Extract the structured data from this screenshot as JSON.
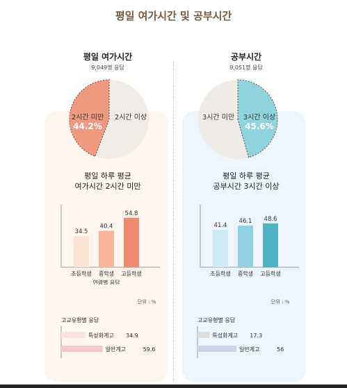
{
  "title": "평일 여가시간 및 공부시간",
  "leisure": {
    "title": "평일 여가시간",
    "respondents": "9,049명 응답",
    "pie": {
      "labels": [
        "2시간 미만",
        "2시간 이상"
      ],
      "highlight_pct": "44.2%",
      "values": [
        44.2,
        55.8
      ]
    },
    "headline_line1": "평일 하루 평균",
    "headline_line2": "여가시간 2시간 미만",
    "bar_label": "연령별 응답",
    "unit": "단위 : %",
    "school_type_title": "고교유형별 응답"
  },
  "study": {
    "title": "공부시간",
    "respondents": "9,051명 응답",
    "pie": {
      "labels": [
        "3시간 미만",
        "3시간 이상"
      ],
      "highlight_pct": "45.6%",
      "values": [
        54.4,
        45.6
      ]
    },
    "headline_line1": "평일 하루 평균",
    "headline_line2": "공부시간 3시간 이상",
    "unit": "단위 : %",
    "school_type_title": "고교유형별 응답"
  },
  "colors": {
    "leisure_pie": "#ef9a80",
    "leisure_rest": "#f0ece8",
    "study_pie": "#8fd3df",
    "study_rest": "#efebe7",
    "leisure_bars": [
      "#fde3d6",
      "#f8b59a",
      "#ef8c70"
    ],
    "study_bars": [
      "#cdebf6",
      "#91d0e2",
      "#4fb1c4"
    ],
    "leisure_hbars": [
      "#fbe5de",
      "#f6c8cd"
    ],
    "study_hbars": [
      "#dedede",
      "#cad7e6"
    ]
  },
  "chart_data": [
    {
      "type": "pie",
      "title": "평일 여가시간",
      "slices": [
        {
          "label": "2시간 미만",
          "value": 44.2
        },
        {
          "label": "2시간 이상",
          "value": 55.8
        }
      ]
    },
    {
      "type": "pie",
      "title": "공부시간",
      "slices": [
        {
          "label": "3시간 이상",
          "value": 45.6
        },
        {
          "label": "3시간 미만",
          "value": 54.4
        }
      ]
    },
    {
      "type": "bar",
      "categories": [
        "초등학생",
        "중학생",
        "고등학생"
      ],
      "values": [
        34.5,
        40.4,
        54.8
      ],
      "value_labels": [
        "34.5",
        "40.4",
        "54.8"
      ],
      "xlabel": "연령별 응답",
      "ylim": [
        0,
        60
      ]
    },
    {
      "type": "bar",
      "categories": [
        "초등학생",
        "중학생",
        "고등학생"
      ],
      "values": [
        41.4,
        46.1,
        48.6
      ],
      "value_labels": [
        "41.4",
        "46.1",
        "48.6"
      ],
      "ylim": [
        0,
        60
      ]
    },
    {
      "type": "bar",
      "orientation": "horizontal",
      "title": "고교유형별 응답",
      "categories": [
        "특성화계고",
        "일반계고"
      ],
      "values": [
        34.9,
        59.6
      ],
      "value_labels": [
        "34.9",
        "59.6"
      ],
      "xlim": [
        0,
        60
      ]
    },
    {
      "type": "bar",
      "orientation": "horizontal",
      "title": "고교유형별 응답",
      "categories": [
        "특성화계고",
        "일반계고"
      ],
      "values": [
        17.3,
        56
      ],
      "value_labels": [
        "17.3",
        "56"
      ],
      "xlim": [
        0,
        60
      ]
    }
  ]
}
